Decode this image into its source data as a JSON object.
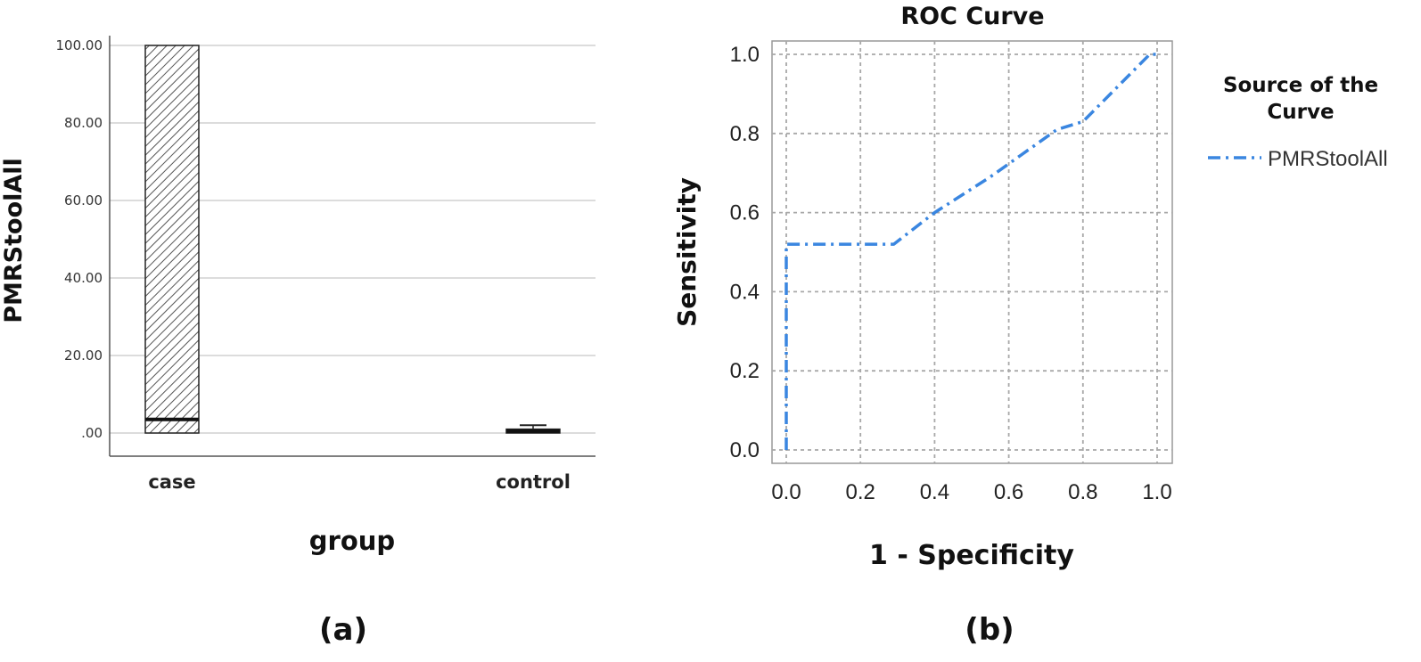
{
  "chart_data": [
    {
      "type": "box",
      "panel_label": "(a)",
      "title": "",
      "xlabel": "group",
      "ylabel": "PMRStoolAll",
      "categories": [
        "case",
        "control"
      ],
      "yticks": [
        ".00",
        "20.00",
        "40.00",
        "60.00",
        "80.00",
        "100.00"
      ],
      "ylim": [
        0,
        100
      ],
      "grid": "horizontal",
      "boxes": [
        {
          "name": "case",
          "min": 0,
          "q1": 0,
          "median": 3.5,
          "q3": 100,
          "max": 100
        },
        {
          "name": "control",
          "min": 0,
          "q1": 0,
          "median": 0.5,
          "q3": 1,
          "max": 2
        }
      ]
    },
    {
      "type": "line",
      "panel_label": "(b)",
      "title": "ROC Curve",
      "xlabel": "1 - Specificity",
      "ylabel": "Sensitivity",
      "xlim": [
        0,
        1
      ],
      "ylim": [
        0,
        1
      ],
      "xticks": [
        "0.0",
        "0.2",
        "0.4",
        "0.6",
        "0.8",
        "1.0"
      ],
      "yticks": [
        "0.0",
        "0.2",
        "0.4",
        "0.6",
        "0.8",
        "1.0"
      ],
      "grid": true,
      "legend": {
        "title": "Source of the Curve",
        "position": "right"
      },
      "series": [
        {
          "name": "PMRStoolAll",
          "color": "#3a86e0",
          "style": "dash-dot",
          "points": [
            [
              0.0,
              0.0
            ],
            [
              0.0,
              0.52
            ],
            [
              0.2,
              0.52
            ],
            [
              0.29,
              0.52
            ],
            [
              0.4,
              0.6
            ],
            [
              0.55,
              0.69
            ],
            [
              0.73,
              0.81
            ],
            [
              0.8,
              0.83
            ],
            [
              0.98,
              1.0
            ],
            [
              1.0,
              1.0
            ]
          ]
        }
      ]
    }
  ]
}
